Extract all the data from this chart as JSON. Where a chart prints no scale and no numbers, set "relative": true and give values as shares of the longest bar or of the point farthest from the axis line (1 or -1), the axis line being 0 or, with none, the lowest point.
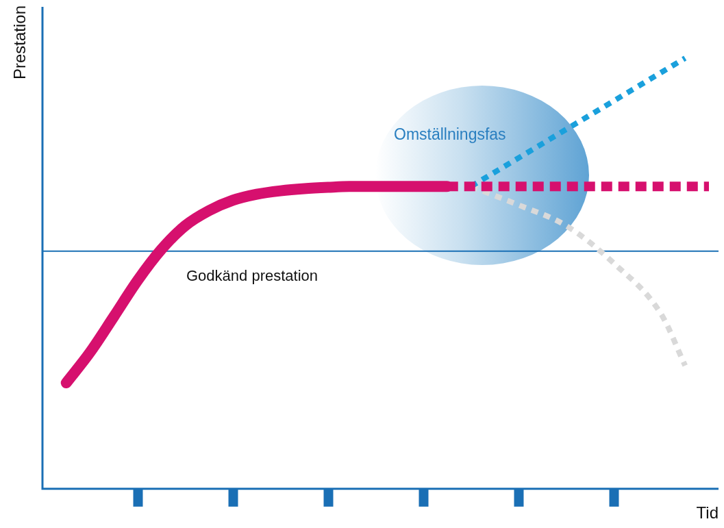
{
  "chart_data": {
    "type": "line",
    "relative": true,
    "ylabel": "Prestation",
    "xlabel": "Tid",
    "annotations": [
      "Omställningsfas"
    ],
    "categories": [
      null,
      null,
      null,
      null,
      null,
      null,
      null,
      null,
      null,
      null,
      null,
      null,
      null,
      null,
      null,
      null,
      null,
      null,
      null,
      null,
      null,
      null,
      null,
      null,
      null,
      null,
      null,
      null,
      null
    ],
    "ref_lines": [
      {
        "axis": "y",
        "value": 0.552,
        "label": "Godkänd prestation",
        "color": "#1a6fb5"
      }
    ],
    "series": [
      {
        "color": "#d6106e",
        "line_style": "solid",
        "values": [
          null,
          0.246,
          0.317,
          0.4,
          0.484,
          0.556,
          0.611,
          0.646,
          0.67,
          0.684,
          0.692,
          0.697,
          0.7,
          0.702,
          0.702,
          0.702,
          0.702,
          0.702,
          null,
          null,
          null,
          null,
          null,
          null,
          null,
          null,
          null,
          null,
          null
        ]
      },
      {
        "color": "#d6106e",
        "line_style": "dashed",
        "values": [
          null,
          null,
          null,
          null,
          null,
          null,
          null,
          null,
          null,
          null,
          null,
          null,
          null,
          null,
          null,
          null,
          null,
          0.702,
          0.702,
          0.702,
          0.702,
          0.702,
          0.702,
          0.702,
          0.702,
          0.702,
          0.702,
          0.702,
          0.702
        ]
      },
      {
        "color": "#1aa0dc",
        "line_style": "dotted",
        "values": [
          null,
          null,
          null,
          null,
          null,
          null,
          null,
          null,
          null,
          null,
          null,
          null,
          null,
          null,
          null,
          null,
          null,
          null,
          0.702,
          null,
          null,
          null,
          null,
          null,
          null,
          null,
          null,
          1,
          null
        ]
      },
      {
        "color": "#d9d9d9",
        "line_style": "dotted",
        "values": [
          null,
          null,
          null,
          null,
          null,
          null,
          null,
          null,
          null,
          null,
          null,
          null,
          null,
          null,
          null,
          null,
          null,
          null,
          0.702,
          null,
          0.659,
          null,
          0.611,
          null,
          0.524,
          null,
          0.405,
          0.286,
          null
        ]
      }
    ]
  }
}
